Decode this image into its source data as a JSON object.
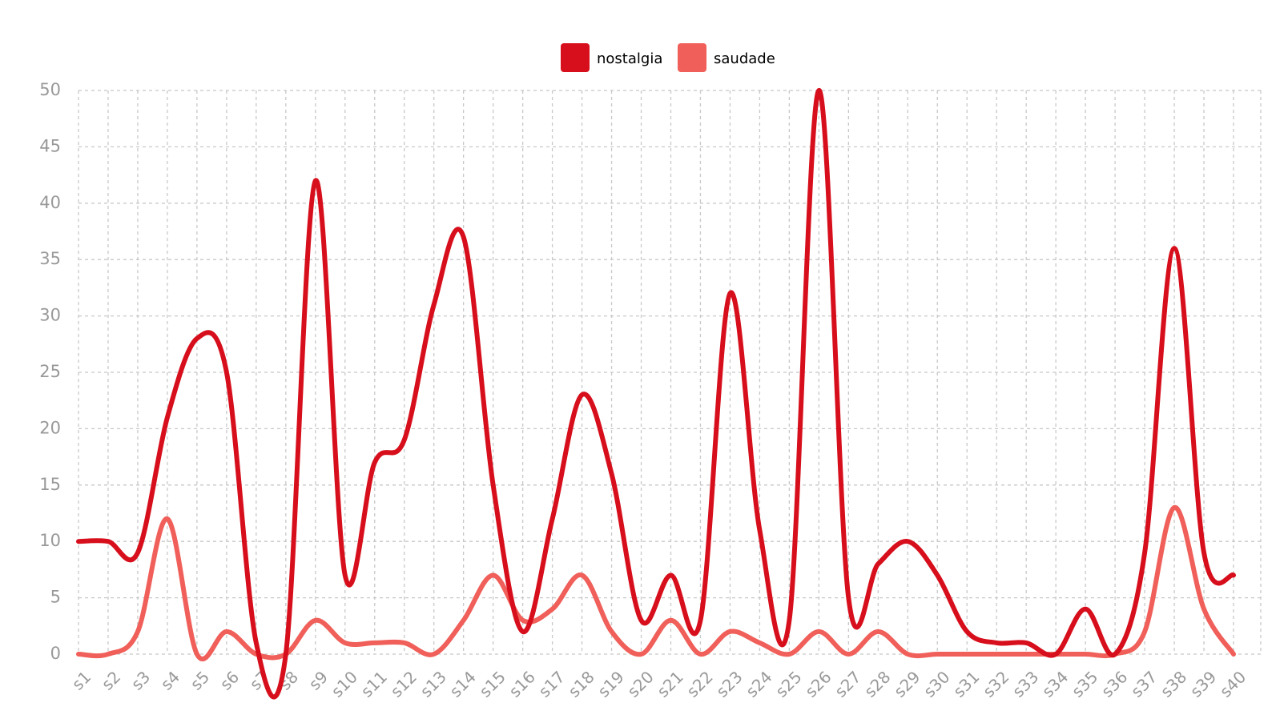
{
  "chart_data": {
    "type": "line",
    "smooth": true,
    "legend_position": "top-center",
    "grid": true,
    "ylim": [
      0,
      50
    ],
    "yticks": [
      "0",
      "5",
      "10",
      "15",
      "20",
      "25",
      "30",
      "35",
      "40",
      "45",
      "50"
    ],
    "categories": [
      "s1",
      "s2",
      "s3",
      "s4",
      "s5",
      "s6",
      "s7",
      "s8",
      "s9",
      "s10",
      "s11",
      "s12",
      "s13",
      "s14",
      "s15",
      "s16",
      "s17",
      "s18",
      "s19",
      "s20",
      "s21",
      "s22",
      "s23",
      "s24",
      "s25",
      "s26",
      "s27",
      "s28",
      "s29",
      "s30",
      "s31",
      "s32",
      "s33",
      "s34",
      "s35",
      "s36",
      "s37",
      "s38",
      "s39",
      "s40"
    ],
    "series": [
      {
        "name": "nostalgia",
        "color": "#d70e1b",
        "values": [
          10,
          10,
          9,
          21,
          28,
          25,
          1,
          0,
          42,
          7,
          17,
          19,
          31,
          37,
          15,
          2,
          12,
          23,
          16,
          3,
          7,
          3,
          32,
          11,
          3,
          50,
          5,
          8,
          10,
          7,
          2,
          1,
          1,
          0,
          4,
          0,
          9,
          36,
          9,
          7
        ]
      },
      {
        "name": "saudade",
        "color": "#f05f59",
        "values": [
          0,
          0,
          2,
          12,
          0,
          2,
          0,
          0,
          3,
          1,
          1,
          1,
          0,
          3,
          7,
          3,
          4,
          7,
          2,
          0,
          3,
          0,
          2,
          1,
          0,
          2,
          0,
          2,
          0,
          0,
          0,
          0,
          0,
          0,
          0,
          0,
          2,
          13,
          4,
          0
        ]
      }
    ]
  }
}
